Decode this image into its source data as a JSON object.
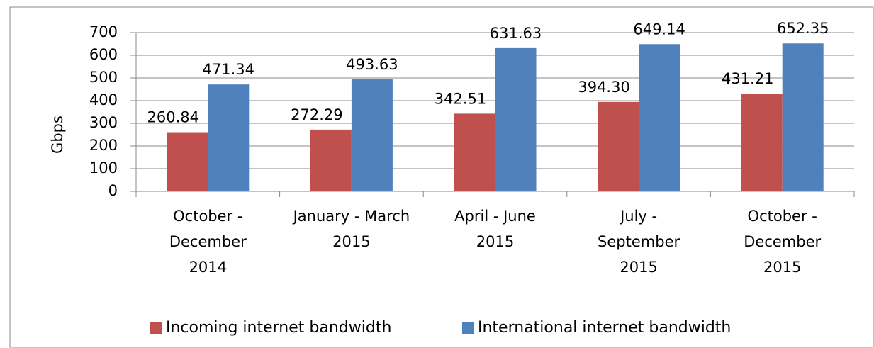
{
  "chart_data": {
    "type": "bar",
    "y_label": "Gbps",
    "categories": [
      [
        "October -",
        "December",
        "2014"
      ],
      [
        "January - March",
        "2015"
      ],
      [
        "April - June",
        "2015"
      ],
      [
        "July -",
        "September",
        "2015"
      ],
      [
        "October -",
        "December",
        "2015"
      ]
    ],
    "series": [
      {
        "name": "Incoming internet bandwidth",
        "color": "#c0504d",
        "values": [
          260.84,
          272.29,
          342.51,
          394.3,
          431.21
        ],
        "value_labels": [
          "260.84",
          "272.29",
          "342.51",
          "394.30",
          "431.21"
        ]
      },
      {
        "name": "International internet bandwidth",
        "color": "#4f81bd",
        "values": [
          471.34,
          493.63,
          631.63,
          649.14,
          652.35
        ],
        "value_labels": [
          "471.34",
          "493.63",
          "631.63",
          "649.14",
          "652.35"
        ]
      }
    ],
    "ylim": [
      0,
      700
    ],
    "yticks": [
      0,
      100,
      200,
      300,
      400,
      500,
      600,
      700
    ],
    "grid": true,
    "legend": "bottom"
  }
}
